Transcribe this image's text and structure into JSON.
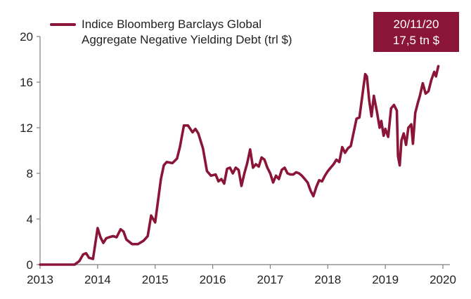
{
  "colors": {
    "series": "#8B1538",
    "axis": "#808080",
    "text": "#222222",
    "callout_bg": "#8B1538",
    "callout_text": "#ffffff"
  },
  "legend": {
    "label_line1": "Indice Bloomberg Barclays Global",
    "label_line2": "Aggregate Negative Yielding Debt (trl $)"
  },
  "callout": {
    "line1": "20/11/20",
    "line2": "17,5 tn $"
  },
  "chart_data": {
    "type": "line",
    "xlim": [
      2013,
      2020
    ],
    "ylim": [
      0,
      20
    ],
    "grid": false,
    "legend_position": "top-left",
    "x_ticks": [
      "2013",
      "2014",
      "2015",
      "2016",
      "2017",
      "2018",
      "2019",
      "2020"
    ],
    "y_ticks": [
      "0",
      "4",
      "8",
      "12",
      "16",
      "20"
    ],
    "series": [
      {
        "name": "Indice Bloomberg Barclays Global Aggregate Negative Yielding Debt (trl $)",
        "points": [
          [
            2013.0,
            0.0
          ],
          [
            2013.2,
            0.0
          ],
          [
            2013.4,
            0.0
          ],
          [
            2013.6,
            0.0
          ],
          [
            2013.68,
            0.3
          ],
          [
            2013.75,
            0.9
          ],
          [
            2013.8,
            1.0
          ],
          [
            2013.85,
            0.6
          ],
          [
            2013.92,
            0.5
          ],
          [
            2014.0,
            3.2
          ],
          [
            2014.05,
            2.4
          ],
          [
            2014.1,
            1.9
          ],
          [
            2014.15,
            2.3
          ],
          [
            2014.2,
            2.4
          ],
          [
            2014.27,
            2.5
          ],
          [
            2014.33,
            2.4
          ],
          [
            2014.4,
            3.1
          ],
          [
            2014.45,
            2.9
          ],
          [
            2014.5,
            2.2
          ],
          [
            2014.6,
            1.8
          ],
          [
            2014.7,
            1.8
          ],
          [
            2014.8,
            2.1
          ],
          [
            2014.87,
            2.5
          ],
          [
            2014.93,
            4.3
          ],
          [
            2015.0,
            3.7
          ],
          [
            2015.05,
            5.6
          ],
          [
            2015.1,
            7.5
          ],
          [
            2015.15,
            8.7
          ],
          [
            2015.2,
            9.0
          ],
          [
            2015.3,
            8.9
          ],
          [
            2015.38,
            9.3
          ],
          [
            2015.43,
            10.3
          ],
          [
            2015.5,
            12.2
          ],
          [
            2015.57,
            12.2
          ],
          [
            2015.65,
            11.6
          ],
          [
            2015.7,
            11.9
          ],
          [
            2015.75,
            11.5
          ],
          [
            2015.83,
            10.2
          ],
          [
            2015.9,
            8.2
          ],
          [
            2015.97,
            7.8
          ],
          [
            2016.05,
            7.9
          ],
          [
            2016.1,
            7.3
          ],
          [
            2016.15,
            7.5
          ],
          [
            2016.2,
            7.1
          ],
          [
            2016.25,
            8.4
          ],
          [
            2016.3,
            8.5
          ],
          [
            2016.35,
            8.0
          ],
          [
            2016.4,
            8.5
          ],
          [
            2016.45,
            8.3
          ],
          [
            2016.5,
            6.9
          ],
          [
            2016.55,
            8.0
          ],
          [
            2016.6,
            8.9
          ],
          [
            2016.65,
            10.1
          ],
          [
            2016.7,
            8.5
          ],
          [
            2016.75,
            8.8
          ],
          [
            2016.8,
            8.6
          ],
          [
            2016.85,
            9.4
          ],
          [
            2016.9,
            9.2
          ],
          [
            2016.95,
            8.5
          ],
          [
            2017.0,
            8.0
          ],
          [
            2017.05,
            7.2
          ],
          [
            2017.1,
            7.8
          ],
          [
            2017.15,
            7.5
          ],
          [
            2017.2,
            8.3
          ],
          [
            2017.25,
            8.5
          ],
          [
            2017.3,
            8.0
          ],
          [
            2017.35,
            7.9
          ],
          [
            2017.4,
            7.9
          ],
          [
            2017.45,
            8.1
          ],
          [
            2017.5,
            8.0
          ],
          [
            2017.55,
            7.8
          ],
          [
            2017.6,
            7.5
          ],
          [
            2017.65,
            7.2
          ],
          [
            2017.7,
            6.5
          ],
          [
            2017.75,
            6.0
          ],
          [
            2017.8,
            6.8
          ],
          [
            2017.85,
            7.4
          ],
          [
            2017.9,
            7.3
          ],
          [
            2017.95,
            7.8
          ],
          [
            2018.0,
            8.2
          ],
          [
            2018.05,
            8.5
          ],
          [
            2018.1,
            8.8
          ],
          [
            2018.15,
            9.2
          ],
          [
            2018.2,
            9.0
          ],
          [
            2018.25,
            10.3
          ],
          [
            2018.3,
            9.8
          ],
          [
            2018.35,
            10.2
          ],
          [
            2018.4,
            10.4
          ],
          [
            2018.45,
            11.6
          ],
          [
            2018.5,
            12.8
          ],
          [
            2018.55,
            12.9
          ],
          [
            2018.6,
            14.8
          ],
          [
            2018.65,
            16.7
          ],
          [
            2018.68,
            16.5
          ],
          [
            2018.72,
            14.4
          ],
          [
            2018.76,
            13.0
          ],
          [
            2018.8,
            14.8
          ],
          [
            2018.85,
            13.5
          ],
          [
            2018.9,
            12.0
          ],
          [
            2018.93,
            12.6
          ],
          [
            2018.97,
            11.3
          ],
          [
            2019.0,
            11.9
          ],
          [
            2019.05,
            11.2
          ],
          [
            2019.1,
            13.7
          ],
          [
            2019.15,
            14.0
          ],
          [
            2019.2,
            13.5
          ],
          [
            2019.22,
            9.5
          ],
          [
            2019.25,
            8.7
          ],
          [
            2019.28,
            10.9
          ],
          [
            2019.32,
            11.5
          ],
          [
            2019.36,
            10.5
          ],
          [
            2019.4,
            12.0
          ],
          [
            2019.45,
            12.3
          ],
          [
            2019.48,
            10.6
          ],
          [
            2019.52,
            13.3
          ],
          [
            2019.56,
            14.1
          ],
          [
            2019.6,
            14.8
          ],
          [
            2019.65,
            15.9
          ],
          [
            2019.7,
            15.0
          ],
          [
            2019.75,
            15.2
          ],
          [
            2019.8,
            16.2
          ],
          [
            2019.85,
            16.9
          ],
          [
            2019.88,
            16.5
          ],
          [
            2019.92,
            17.4
          ]
        ]
      }
    ]
  }
}
